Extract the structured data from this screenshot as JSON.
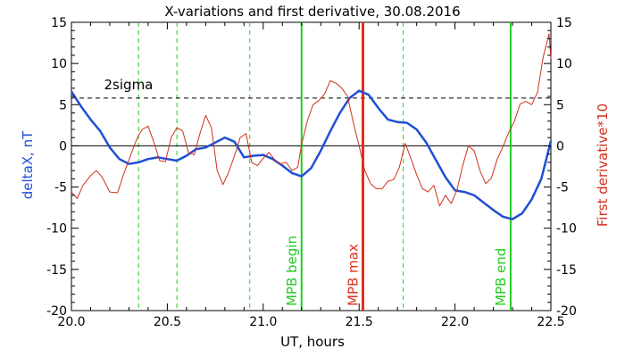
{
  "chart_data": {
    "type": "line",
    "title": "X-variations and first derivative, 30.08.2016",
    "xlabel": "UT, hours",
    "ylabel_left": "deltaX, nT",
    "ylabel_right": "First derivative*10",
    "xlim": [
      20.0,
      22.5
    ],
    "ylim_left": [
      -20,
      15
    ],
    "ylim_right": [
      -20,
      15
    ],
    "x_ticks": [
      "20.0",
      "20.5",
      "21.0",
      "21.5",
      "22.0",
      "22.5"
    ],
    "y_ticks_left": [
      "15",
      "10",
      "5",
      "0",
      "-5",
      "-10",
      "-15",
      "-20"
    ],
    "y_ticks_right": [
      "15",
      "10",
      "5",
      "0",
      "-5",
      "-10",
      "-15",
      "-20"
    ],
    "colors": {
      "deltaX": "#1f4fd6",
      "derivative": "#d0301c",
      "mpb_begin_end": "#22cc22",
      "mpb_max": "#e0301c",
      "guide_dashed": "#22cc22",
      "zero_line": "#000000",
      "sigma_line": "#000000"
    },
    "series": [
      {
        "name": "deltaX, nT",
        "axis": "left",
        "x": [
          20.0,
          20.05,
          20.1,
          20.15,
          20.2,
          20.25,
          20.3,
          20.35,
          20.4,
          20.45,
          20.5,
          20.55,
          20.6,
          20.65,
          20.7,
          20.75,
          20.8,
          20.85,
          20.9,
          20.95,
          21.0,
          21.05,
          21.1,
          21.15,
          21.2,
          21.25,
          21.3,
          21.35,
          21.4,
          21.45,
          21.5,
          21.55,
          21.6,
          21.65,
          21.7,
          21.75,
          21.8,
          21.85,
          21.9,
          21.95,
          22.0,
          22.05,
          22.1,
          22.15,
          22.2,
          22.25,
          22.3,
          22.35,
          22.4,
          22.45,
          22.5
        ],
        "y": [
          6.6,
          4.8,
          3.2,
          1.8,
          -0.2,
          -1.6,
          -2.2,
          -2.0,
          -1.6,
          -1.4,
          -1.6,
          -1.8,
          -1.2,
          -0.4,
          -0.2,
          0.4,
          1.0,
          0.5,
          -1.4,
          -1.2,
          -1.1,
          -1.6,
          -2.4,
          -3.3,
          -3.7,
          -2.7,
          -0.6,
          1.8,
          4.0,
          5.8,
          6.7,
          6.2,
          4.6,
          3.2,
          2.9,
          2.8,
          2.0,
          0.4,
          -1.7,
          -3.8,
          -5.4,
          -5.6,
          -6.0,
          -6.9,
          -7.8,
          -8.6,
          -8.9,
          -8.2,
          -6.5,
          -4.0,
          0.6
        ]
      },
      {
        "name": "First derivative*10",
        "axis": "right",
        "x": [
          20.0,
          20.03,
          20.06,
          20.1,
          20.13,
          20.16,
          20.2,
          20.24,
          20.27,
          20.3,
          20.33,
          20.35,
          20.37,
          20.4,
          20.43,
          20.46,
          20.49,
          20.52,
          20.55,
          20.58,
          20.61,
          20.64,
          20.67,
          20.7,
          20.73,
          20.76,
          20.79,
          20.82,
          20.85,
          20.88,
          20.91,
          20.94,
          20.97,
          21.0,
          21.03,
          21.06,
          21.09,
          21.12,
          21.15,
          21.18,
          21.2,
          21.23,
          21.26,
          21.29,
          21.32,
          21.35,
          21.38,
          21.41,
          21.44,
          21.47,
          21.5,
          21.53,
          21.56,
          21.59,
          21.62,
          21.65,
          21.68,
          21.71,
          21.74,
          21.77,
          21.8,
          21.83,
          21.86,
          21.89,
          21.92,
          21.95,
          21.98,
          22.01,
          22.04,
          22.07,
          22.1,
          22.13,
          22.16,
          22.19,
          22.22,
          22.25,
          22.28,
          22.31,
          22.34,
          22.37,
          22.4,
          22.43,
          22.46,
          22.49,
          22.5
        ],
        "y": [
          -5.6,
          -6.4,
          -4.8,
          -3.6,
          -3.0,
          -3.8,
          -5.6,
          -5.7,
          -3.6,
          -1.7,
          0.2,
          1.3,
          2.0,
          2.4,
          0.4,
          -1.8,
          -1.9,
          1.0,
          2.2,
          1.8,
          -0.8,
          -1.1,
          1.5,
          3.7,
          2.2,
          -3.0,
          -4.7,
          -3.2,
          -1.2,
          1.0,
          1.5,
          -2.0,
          -2.4,
          -1.5,
          -0.8,
          -1.7,
          -2.2,
          -2.0,
          -3.0,
          -2.6,
          0.2,
          3.0,
          5.0,
          5.5,
          6.3,
          7.9,
          7.6,
          7.0,
          6.0,
          2.8,
          0.0,
          -3.0,
          -4.6,
          -5.2,
          -5.2,
          -4.3,
          -4.1,
          -2.6,
          0.3,
          -1.5,
          -3.5,
          -5.2,
          -5.6,
          -4.8,
          -7.3,
          -6.0,
          -7.0,
          -5.4,
          -2.4,
          0.0,
          -0.6,
          -3.0,
          -4.6,
          -3.9,
          -1.6,
          -0.1,
          1.6,
          3.0,
          5.1,
          5.4,
          5.0,
          6.5,
          10.8,
          13.6,
          10.6
        ]
      }
    ],
    "reference_lines": {
      "zero": 0,
      "sigma": {
        "label": "2sigma",
        "value": 5.8
      }
    },
    "vertical_markers": [
      {
        "label": "MPB begin",
        "x": 21.2,
        "style": "solid",
        "color": "#22cc22"
      },
      {
        "label": "MPB max",
        "x": 21.52,
        "style": "solid",
        "color": "#e0301c"
      },
      {
        "label": "MPB end",
        "x": 22.29,
        "style": "solid",
        "color": "#22cc22"
      }
    ],
    "dashed_guides": [
      20.35,
      20.55,
      20.93,
      21.73
    ],
    "grid": false,
    "legend": "none"
  }
}
